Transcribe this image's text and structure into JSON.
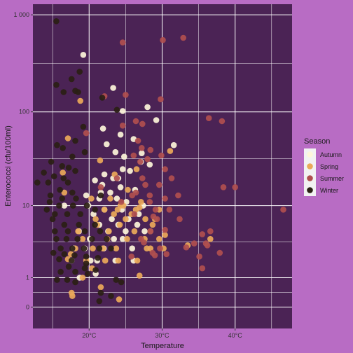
{
  "colors": {
    "background": "#b86cc4",
    "panel": "#4b2355",
    "grid": "#ffffff",
    "text": "#333333",
    "Autumn": "#fdf6da",
    "Spring": "#eaa95a",
    "Summer": "#b04f4f",
    "Winter": "#2a2015"
  },
  "chart_data": {
    "type": "scatter",
    "xlabel": "Temperature",
    "ylabel": "Enterococci (cfu/100ml)",
    "x_scale": "linear",
    "y_scale": "log10(1 + y)",
    "xlim": [
      12.3,
      47.8
    ],
    "ylim": [
      0,
      1200
    ],
    "x_ticks": [
      20,
      30,
      40
    ],
    "x_tick_labels": [
      "20°C",
      "30°C",
      "40°C"
    ],
    "y_ticks": [
      0,
      1,
      10,
      100,
      1000
    ],
    "y_tick_labels": [
      "0",
      "1",
      "10",
      "100",
      "1 000"
    ],
    "grid": true,
    "legend": {
      "title": "Season",
      "position": "right",
      "entries": [
        "Autumn",
        "Spring",
        "Summer",
        "Winter"
      ]
    },
    "series": [
      {
        "name": "Autumn",
        "points": [
          [
            19.2,
            388
          ],
          [
            23.3,
            177
          ],
          [
            21.9,
            67
          ],
          [
            24.6,
            102
          ],
          [
            28.0,
            112
          ],
          [
            29.2,
            82
          ],
          [
            24.3,
            58
          ],
          [
            26.1,
            52
          ],
          [
            22.4,
            46
          ],
          [
            23.6,
            38
          ],
          [
            24.8,
            34
          ],
          [
            27.1,
            30
          ],
          [
            24.6,
            25
          ],
          [
            25.6,
            24
          ],
          [
            22.1,
            22
          ],
          [
            23.3,
            20
          ],
          [
            20.8,
            19
          ],
          [
            21.8,
            17
          ],
          [
            24.3,
            16
          ],
          [
            26.3,
            15
          ],
          [
            22.9,
            14
          ],
          [
            19.6,
            13
          ],
          [
            21.4,
            12
          ],
          [
            23.8,
            12
          ],
          [
            25.1,
            11
          ],
          [
            27.4,
            10
          ],
          [
            19.9,
            10
          ],
          [
            22.1,
            9
          ],
          [
            24.5,
            9
          ],
          [
            26.8,
            8
          ],
          [
            20.6,
            8
          ],
          [
            23.1,
            7
          ],
          [
            25.4,
            7
          ],
          [
            21.4,
            6
          ],
          [
            24.0,
            6
          ],
          [
            26.6,
            6
          ],
          [
            18.6,
            5
          ],
          [
            22.6,
            5
          ],
          [
            25.0,
            5
          ],
          [
            27.6,
            5
          ],
          [
            20.1,
            4
          ],
          [
            23.4,
            4
          ],
          [
            24.6,
            4
          ],
          [
            19.4,
            3
          ],
          [
            22.0,
            3
          ],
          [
            25.9,
            3
          ],
          [
            17.9,
            3
          ],
          [
            21.1,
            2
          ],
          [
            23.6,
            2
          ],
          [
            26.1,
            2
          ],
          [
            20.2,
            2
          ],
          [
            17.6,
            2
          ],
          [
            20.9,
            1.2
          ],
          [
            18.7,
            1
          ],
          [
            16.6,
            10
          ],
          [
            31.6,
            45
          ],
          [
            27.2,
            37
          ],
          [
            24.0,
            20
          ],
          [
            28.3,
            28
          ],
          [
            21.6,
            14
          ]
        ]
      },
      {
        "name": "Spring",
        "points": [
          [
            18.8,
            130
          ],
          [
            21.5,
            31
          ],
          [
            20.3,
            12
          ],
          [
            22.1,
            9
          ],
          [
            23.4,
            8
          ],
          [
            25.0,
            7
          ],
          [
            26.4,
            9
          ],
          [
            27.7,
            7
          ],
          [
            24.2,
            6
          ],
          [
            22.7,
            5
          ],
          [
            26.2,
            5
          ],
          [
            27.6,
            4
          ],
          [
            29.6,
            4
          ],
          [
            28.4,
            5
          ],
          [
            25.2,
            4
          ],
          [
            23.7,
            3
          ],
          [
            21.9,
            3
          ],
          [
            20.5,
            3
          ],
          [
            19.1,
            4
          ],
          [
            18.1,
            3
          ],
          [
            17.5,
            2.5
          ],
          [
            19.6,
            2
          ],
          [
            22.2,
            2
          ],
          [
            24.0,
            2
          ],
          [
            26.6,
            2
          ],
          [
            28.4,
            3
          ],
          [
            30.2,
            3
          ],
          [
            30.4,
            4.5
          ],
          [
            29.6,
            9
          ],
          [
            29.0,
            7
          ],
          [
            26.9,
            1.1
          ],
          [
            17.6,
            0.4
          ],
          [
            17.7,
            0.3
          ],
          [
            21.6,
            0.6
          ],
          [
            24.1,
            0.2
          ],
          [
            19.1,
            1
          ],
          [
            16.6,
            14
          ],
          [
            31.1,
            39
          ],
          [
            36.6,
            4
          ],
          [
            33.5,
            3.3
          ],
          [
            17.1,
            2.1
          ],
          [
            20.4,
            1.5
          ],
          [
            22.9,
            12
          ],
          [
            25.3,
            15
          ],
          [
            27.1,
            11
          ],
          [
            28.7,
            6
          ],
          [
            17.1,
            53
          ],
          [
            16.4,
            23
          ],
          [
            23.5,
            22
          ],
          [
            21.1,
            6
          ],
          [
            24.3,
            10
          ],
          [
            26.5,
            25
          ],
          [
            22.5,
            4
          ],
          [
            27.9,
            3
          ],
          [
            23.9,
            9
          ],
          [
            25.8,
            8
          ],
          [
            20.9,
            7
          ],
          [
            18.5,
            5
          ],
          [
            26.9,
            9.5
          ],
          [
            24.7,
            10
          ]
        ]
      },
      {
        "name": "Summer",
        "points": [
          [
            26.7,
            50
          ],
          [
            24.6,
            72
          ],
          [
            26.4,
            80
          ],
          [
            27.3,
            75
          ],
          [
            28.4,
            40
          ],
          [
            27.2,
            42
          ],
          [
            26.1,
            35
          ],
          [
            27.0,
            30
          ],
          [
            28.0,
            32
          ],
          [
            29.9,
            35
          ],
          [
            30.4,
            25
          ],
          [
            29.6,
            17
          ],
          [
            27.7,
            17
          ],
          [
            26.4,
            14
          ],
          [
            28.3,
            13
          ],
          [
            30.4,
            12
          ],
          [
            28.3,
            11
          ],
          [
            32.2,
            13
          ],
          [
            29.1,
            9
          ],
          [
            26.2,
            8
          ],
          [
            29.3,
            7
          ],
          [
            31.0,
            9
          ],
          [
            32.4,
            7
          ],
          [
            28.4,
            5
          ],
          [
            27.1,
            4
          ],
          [
            29.7,
            3
          ],
          [
            29.0,
            2.4
          ],
          [
            30.6,
            2.5
          ],
          [
            36.2,
            3.3
          ],
          [
            35.1,
            2.3
          ],
          [
            37.9,
            2.6
          ],
          [
            36.6,
            5
          ],
          [
            34.4,
            3.5
          ],
          [
            36.0,
            3.5
          ],
          [
            36.4,
            86
          ],
          [
            38.2,
            80
          ],
          [
            46.6,
            9
          ],
          [
            40.0,
            16
          ],
          [
            38.4,
            16
          ],
          [
            24.6,
            520
          ],
          [
            30.1,
            550
          ],
          [
            32.9,
            580
          ],
          [
            29.8,
            135
          ],
          [
            22.1,
            145
          ],
          [
            25.0,
            150
          ],
          [
            19.6,
            60
          ],
          [
            23.8,
            20
          ],
          [
            25.9,
            13
          ],
          [
            27.3,
            20
          ],
          [
            31.3,
            20
          ],
          [
            35.5,
            1.5
          ],
          [
            33.3,
            3.1
          ],
          [
            35.5,
            4.6
          ],
          [
            28.7,
            2.6
          ],
          [
            27.5,
            3.6
          ],
          [
            24.4,
            11
          ],
          [
            21.6,
            16
          ],
          [
            30.4,
            5.2
          ],
          [
            28.8,
            7.5
          ],
          [
            25.8,
            2.3
          ]
        ]
      },
      {
        "name": "Winter",
        "points": [
          [
            15.5,
            860
          ],
          [
            18.7,
            260
          ],
          [
            17.6,
            218
          ],
          [
            15.5,
            190
          ],
          [
            18.1,
            165
          ],
          [
            18.5,
            160
          ],
          [
            16.5,
            160
          ],
          [
            21.8,
            140
          ],
          [
            23.8,
            105
          ],
          [
            19.2,
            70
          ],
          [
            18.1,
            50
          ],
          [
            15.6,
            45
          ],
          [
            16.4,
            42
          ],
          [
            17.7,
            34
          ],
          [
            19.4,
            38
          ],
          [
            14.8,
            30
          ],
          [
            16.3,
            27
          ],
          [
            17.2,
            26
          ],
          [
            18.1,
            24
          ],
          [
            13.8,
            23
          ],
          [
            15.2,
            21
          ],
          [
            16.5,
            20
          ],
          [
            12.9,
            18
          ],
          [
            14.4,
            18
          ],
          [
            17.1,
            18
          ],
          [
            16.0,
            15
          ],
          [
            17.7,
            14
          ],
          [
            14.7,
            13
          ],
          [
            16.3,
            12
          ],
          [
            18.2,
            12
          ],
          [
            21.6,
            13
          ],
          [
            14.6,
            11
          ],
          [
            15.9,
            10
          ],
          [
            17.8,
            10
          ],
          [
            19.7,
            10
          ],
          [
            14.2,
            9
          ],
          [
            15.3,
            8
          ],
          [
            17.0,
            8
          ],
          [
            18.8,
            8
          ],
          [
            20.8,
            9
          ],
          [
            15.0,
            7
          ],
          [
            16.6,
            6
          ],
          [
            18.6,
            6
          ],
          [
            20.8,
            6
          ],
          [
            15.3,
            5
          ],
          [
            17.1,
            5
          ],
          [
            19.4,
            5
          ],
          [
            21.5,
            5
          ],
          [
            15.5,
            4
          ],
          [
            16.9,
            4
          ],
          [
            18.4,
            4
          ],
          [
            20.4,
            4
          ],
          [
            22.4,
            4
          ],
          [
            16.1,
            3
          ],
          [
            17.7,
            3
          ],
          [
            19.3,
            3
          ],
          [
            21.4,
            3
          ],
          [
            23.0,
            3
          ],
          [
            15.1,
            2.6
          ],
          [
            16.6,
            2.5
          ],
          [
            18.0,
            2.4
          ],
          [
            19.6,
            2.3
          ],
          [
            21.2,
            2.2
          ],
          [
            15.9,
            2.1
          ],
          [
            17.6,
            2.0
          ],
          [
            19.6,
            1.8
          ],
          [
            17.2,
            1.6
          ],
          [
            19.4,
            1.5
          ],
          [
            20.9,
            1.4
          ],
          [
            16.1,
            1.3
          ],
          [
            18.1,
            1.3
          ],
          [
            19.8,
            1.2
          ],
          [
            15.6,
            0.9
          ],
          [
            17.0,
            0.9
          ],
          [
            18.1,
            0.8
          ],
          [
            23.7,
            0.9
          ],
          [
            24.4,
            0.8
          ],
          [
            21.6,
            0.4
          ],
          [
            23.0,
            0.3
          ],
          [
            21.4,
            0.15
          ]
        ]
      }
    ]
  }
}
